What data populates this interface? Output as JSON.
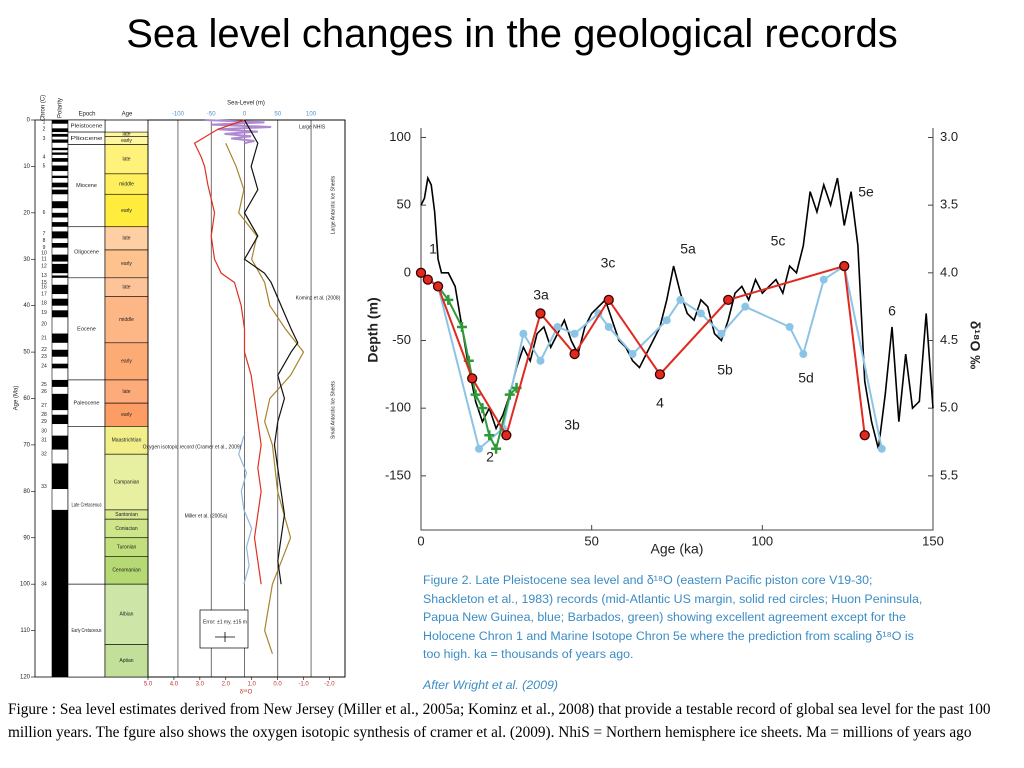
{
  "title": "Sea level changes in the geological records",
  "caption": "Figure : Sea level estimates derived from New Jersey (Miller et al., 2005a; Kominz et al., 2008) that provide a testable record of global sea level for the past 100 million years. The fgure also shows the oxygen isotopic synthesis of cramer et al. (2009). NhiS = Northern hemisphere ice sheets. Ma = millions of years ago",
  "chart_data": [
    {
      "type": "profile",
      "ylabel": "Age (Ma)",
      "xlabel": "Sea-Level (m)",
      "x2label": "δ¹⁸O",
      "columns": [
        "Chron (C)",
        "Polarity",
        "Epoch",
        "Age"
      ],
      "ylim": [
        0,
        120
      ],
      "yticks": [
        0,
        10,
        20,
        30,
        40,
        50,
        60,
        70,
        80,
        90,
        100,
        110,
        120
      ],
      "xlim": [
        -145,
        151
      ],
      "xticks": [
        -100,
        -50,
        0,
        50,
        100
      ],
      "x2lim": [
        5.0,
        -2.6
      ],
      "x2ticks": [
        {
          "value": 5,
          "label": "5.0"
        },
        {
          "value": 4,
          "label": "4.0"
        },
        {
          "value": 3,
          "label": "3.0"
        },
        {
          "value": 2,
          "label": "2.0"
        },
        {
          "value": 1,
          "label": "1.0"
        },
        {
          "value": 0,
          "label": "0.0"
        },
        {
          "value": -1,
          "label": "-1.0"
        },
        {
          "value": -2,
          "label": "-2.0"
        }
      ],
      "grid": true,
      "epochs": [
        {
          "name": "Pleistocene",
          "start": 0,
          "end": 2.6
        },
        {
          "name": "Pliocene",
          "start": 2.6,
          "end": 5.3
        },
        {
          "name": "Miocene",
          "start": 5.3,
          "end": 23
        },
        {
          "name": "Oligocene",
          "start": 23,
          "end": 34
        },
        {
          "name": "Eocene",
          "start": 34,
          "end": 56
        },
        {
          "name": "Paleocene",
          "start": 56,
          "end": 66
        },
        {
          "name": "Late Cretaceous",
          "start": 66,
          "end": 100
        },
        {
          "name": "Early Cretaceous",
          "start": 100,
          "end": 120
        }
      ],
      "stages": [
        {
          "name": "late",
          "start": 2.6,
          "end": 3.6,
          "color": "#fff6a0"
        },
        {
          "name": "early",
          "start": 3.6,
          "end": 5.3,
          "color": "#fff6a0"
        },
        {
          "name": "late",
          "start": 5.3,
          "end": 11.6,
          "color": "#fff27a"
        },
        {
          "name": "middle",
          "start": 11.6,
          "end": 16,
          "color": "#ffef5e"
        },
        {
          "name": "early",
          "start": 16,
          "end": 23,
          "color": "#ffec3c"
        },
        {
          "name": "late",
          "start": 23,
          "end": 28,
          "color": "#fdcfa2"
        },
        {
          "name": "early",
          "start": 28,
          "end": 34,
          "color": "#fdc28e"
        },
        {
          "name": "late",
          "start": 34,
          "end": 38,
          "color": "#fdc49a"
        },
        {
          "name": "middle",
          "start": 38,
          "end": 48,
          "color": "#fdb787"
        },
        {
          "name": "early",
          "start": 48,
          "end": 56,
          "color": "#fdab74"
        },
        {
          "name": "late",
          "start": 56,
          "end": 61,
          "color": "#fdab7a"
        },
        {
          "name": "early",
          "start": 61,
          "end": 66,
          "color": "#fd9d66"
        },
        {
          "name": "Maastrichtian",
          "start": 66,
          "end": 72,
          "color": "#f2ef8a"
        },
        {
          "name": "Campanian",
          "start": 72,
          "end": 84,
          "color": "#e7f0a0"
        },
        {
          "name": "Santonian",
          "start": 84,
          "end": 86,
          "color": "#d8e891"
        },
        {
          "name": "Coniacian",
          "start": 86,
          "end": 90,
          "color": "#cee58a"
        },
        {
          "name": "Turonian",
          "start": 90,
          "end": 94,
          "color": "#c1df7d"
        },
        {
          "name": "Cenomanian",
          "start": 94,
          "end": 100,
          "color": "#b5d973"
        },
        {
          "name": "Albian",
          "start": 100,
          "end": 113,
          "color": "#cde6a8"
        },
        {
          "name": "Aptian",
          "start": 113,
          "end": 120,
          "color": "#c2e09a"
        }
      ],
      "chrons": [
        {
          "label": "1",
          "age": 0.5
        },
        {
          "label": "2",
          "age": 2
        },
        {
          "label": "3",
          "age": 4
        },
        {
          "label": "4",
          "age": 8
        },
        {
          "label": "5",
          "age": 10
        },
        {
          "label": "6",
          "age": 20
        },
        {
          "label": "7",
          "age": 24.5
        },
        {
          "label": "8",
          "age": 26
        },
        {
          "label": "9",
          "age": 27.5
        },
        {
          "label": "10",
          "age": 28.7
        },
        {
          "label": "11",
          "age": 30
        },
        {
          "label": "12",
          "age": 31.5
        },
        {
          "label": "13",
          "age": 33.5
        },
        {
          "label": "15",
          "age": 35
        },
        {
          "label": "16",
          "age": 36
        },
        {
          "label": "17",
          "age": 37.5
        },
        {
          "label": "18",
          "age": 39.5
        },
        {
          "label": "19",
          "age": 41.5
        },
        {
          "label": "20",
          "age": 44
        },
        {
          "label": "21",
          "age": 47
        },
        {
          "label": "22",
          "age": 49.5
        },
        {
          "label": "23",
          "age": 51
        },
        {
          "label": "24",
          "age": 53
        },
        {
          "label": "25",
          "age": 57
        },
        {
          "label": "26",
          "age": 58.5
        },
        {
          "label": "27",
          "age": 61.5
        },
        {
          "label": "28",
          "age": 63.5
        },
        {
          "label": "29",
          "age": 65
        },
        {
          "label": "30",
          "age": 67
        },
        {
          "label": "31",
          "age": 69
        },
        {
          "label": "32",
          "age": 72
        },
        {
          "label": "33",
          "age": 79
        },
        {
          "label": "34",
          "age": 100
        }
      ],
      "polarity_normal": [
        [
          0,
          0.8
        ],
        [
          1.8,
          2.6
        ],
        [
          3.0,
          3.6
        ],
        [
          4.2,
          4.9
        ],
        [
          6.0,
          6.5
        ],
        [
          7.0,
          7.5
        ],
        [
          8.2,
          9.0
        ],
        [
          9.8,
          11.0
        ],
        [
          12.0,
          12.5
        ],
        [
          13.5,
          14.5
        ],
        [
          15.0,
          16.0
        ],
        [
          17.5,
          19.0
        ],
        [
          20.0,
          21.0
        ],
        [
          22.0,
          23.0
        ],
        [
          24.0,
          25.5
        ],
        [
          26.5,
          27.5
        ],
        [
          29.0,
          30.5
        ],
        [
          31.0,
          33.0
        ],
        [
          33.5,
          34.0
        ],
        [
          35.5,
          37.5
        ],
        [
          38.5,
          40.0
        ],
        [
          41.0,
          42.5
        ],
        [
          46.0,
          48.0
        ],
        [
          49.5,
          51.0
        ],
        [
          52.5,
          53.5
        ],
        [
          56,
          57.5
        ],
        [
          59,
          62.5
        ],
        [
          63.5,
          65.5
        ],
        [
          68,
          71
        ],
        [
          74,
          79.5
        ],
        [
          84,
          120
        ]
      ],
      "series": [
        {
          "color": "#b08ad0",
          "axis": "x",
          "ages": [
            0,
            0.5,
            1,
            1.5,
            2,
            2.5,
            3,
            3.5,
            4,
            4.5,
            5
          ],
          "values": [
            -60,
            30,
            -50,
            40,
            -40,
            20,
            -30,
            10,
            -20,
            15,
            0
          ]
        },
        {
          "color": "#a8842e",
          "axis": "x2",
          "ages": [
            5,
            10,
            15,
            20,
            25,
            30,
            35,
            40,
            45,
            50,
            55,
            60,
            65,
            70,
            80,
            90,
            100,
            110,
            115
          ],
          "values": [
            2.0,
            1.6,
            1.3,
            1.5,
            0.8,
            1.0,
            0.5,
            0.3,
            -0.3,
            -1.0,
            -0.5,
            0.3,
            0.5,
            0.2,
            0.0,
            -0.5,
            0.2,
            0.5,
            0.2
          ]
        },
        {
          "color": "#8fb8e0",
          "axis": "x2",
          "ages": [
            68,
            72,
            76,
            80,
            84,
            88,
            92,
            96,
            100
          ],
          "values": [
            1.3,
            1.5,
            1.2,
            1.4,
            1.3,
            1.0,
            1.2,
            1.1,
            1.3
          ]
        },
        {
          "color": "#e03020",
          "axis": "x",
          "ages": [
            0,
            2,
            5,
            8,
            10,
            14,
            17,
            20,
            25,
            30,
            33,
            35,
            40,
            45,
            50,
            55,
            60,
            65,
            70,
            75,
            80,
            85,
            90,
            95,
            100
          ],
          "values": [
            0,
            -40,
            -75,
            -65,
            -60,
            -55,
            -50,
            -45,
            -50,
            -45,
            -35,
            -15,
            -5,
            0,
            0,
            10,
            15,
            20,
            25,
            20,
            25,
            20,
            15,
            20,
            25
          ]
        },
        {
          "color": "#111111",
          "axis": "x",
          "ages": [
            0,
            5,
            10,
            15,
            20,
            25,
            30,
            33,
            35,
            40,
            45,
            48,
            50,
            55,
            60,
            65,
            70,
            75,
            80,
            85,
            90,
            95,
            100
          ],
          "values": [
            0,
            20,
            10,
            20,
            0,
            20,
            0,
            30,
            40,
            55,
            70,
            80,
            70,
            50,
            60,
            50,
            45,
            50,
            55,
            60,
            55,
            50,
            55
          ]
        }
      ],
      "annotations": [
        "Large NHIS",
        "Large Antarctic Ice Sheets",
        "Small Antarctic Ice Sheets",
        "Kominz et al. (2008)",
        "Oxygen isotopic record (Cramer et al., 2009)",
        "Miller et al. (2005a)",
        "Error: ±1 my, ±15 m"
      ]
    },
    {
      "type": "line",
      "xlabel": "Age (ka)",
      "ylabel": "Depth (m)",
      "y2label": "δ¹⁸O ‰",
      "xlim": [
        0,
        150
      ],
      "xticks": [
        0,
        50,
        100,
        150
      ],
      "ylim": [
        -190,
        107
      ],
      "yticks": [
        100,
        50,
        0,
        -50,
        -100,
        -150
      ],
      "y2lim": [
        5.9,
        2.93
      ],
      "y2ticks": [
        {
          "value": 3,
          "label": "3.0"
        },
        {
          "value": 3.5,
          "label": "3.5"
        },
        {
          "value": 4,
          "label": "4.0"
        },
        {
          "value": 4.5,
          "label": "4.5"
        },
        {
          "value": 5,
          "label": "5.0"
        },
        {
          "value": 5.5,
          "label": "5.5"
        }
      ],
      "series": [
        {
          "color": "#000000",
          "axis": "y2",
          "marker": "none",
          "x": [
            0,
            1,
            2,
            3,
            4,
            5,
            6,
            8,
            10,
            12,
            14,
            16,
            18,
            20,
            22,
            24,
            26,
            28,
            30,
            32,
            34,
            36,
            38,
            40,
            42,
            44,
            46,
            48,
            50,
            52,
            54,
            56,
            58,
            60,
            62,
            64,
            66,
            68,
            70,
            72,
            74,
            76,
            78,
            80,
            82,
            84,
            86,
            88,
            90,
            92,
            94,
            96,
            98,
            100,
            102,
            104,
            106,
            108,
            110,
            112,
            114,
            116,
            118,
            120,
            122,
            124,
            126,
            128,
            130,
            132,
            134,
            136,
            138,
            140,
            142,
            144,
            146,
            148,
            150
          ],
          "values": [
            3.5,
            3.45,
            3.3,
            3.35,
            3.55,
            3.9,
            4,
            4,
            4.1,
            4.4,
            4.7,
            4.95,
            5.1,
            5,
            5.15,
            5.05,
            4.9,
            4.7,
            4.55,
            4.65,
            4.45,
            4.4,
            4.55,
            4.45,
            4.35,
            4.5,
            4.6,
            4.4,
            4.3,
            4.25,
            4.2,
            4.35,
            4.5,
            4.55,
            4.65,
            4.7,
            4.6,
            4.5,
            4.4,
            4.2,
            3.95,
            4.15,
            4.3,
            4.35,
            4.2,
            4.25,
            4.45,
            4.5,
            4.35,
            4.15,
            4.1,
            4.2,
            4.05,
            4.15,
            4.1,
            4.05,
            4.15,
            3.95,
            4,
            3.8,
            3.4,
            3.55,
            3.35,
            3.5,
            3.3,
            3.65,
            3.4,
            3.8,
            4.8,
            5.1,
            5.3,
            4.9,
            4.4,
            5.1,
            4.6,
            5,
            4.95,
            4.3,
            5
          ]
        },
        {
          "color": "#8cc4e6",
          "axis": "y",
          "marker": "dot",
          "x": [
            0,
            5,
            17,
            24,
            30,
            35,
            40,
            45,
            52,
            55,
            62,
            72,
            76,
            82,
            88,
            95,
            108,
            112,
            118,
            124,
            135
          ],
          "values": [
            0,
            -10,
            -130,
            -115,
            -45,
            -65,
            -40,
            -45,
            -30,
            -40,
            -60,
            -35,
            -20,
            -30,
            -45,
            -25,
            -40,
            -60,
            -5,
            5,
            -130
          ]
        },
        {
          "color": "#2e9a3a",
          "axis": "y",
          "marker": "plus",
          "x": [
            5,
            8,
            12,
            14,
            16,
            18,
            20,
            22,
            26,
            28
          ],
          "values": [
            -10,
            -20,
            -40,
            -65,
            -90,
            -100,
            -120,
            -130,
            -90,
            -85
          ]
        },
        {
          "color": "#e02a20",
          "axis": "y",
          "marker": "circle",
          "x": [
            0,
            2,
            5,
            15,
            25,
            35,
            45,
            55,
            70,
            90,
            124,
            130
          ],
          "values": [
            0,
            -5,
            -10,
            -78,
            -120,
            -30,
            -60,
            -20,
            -75,
            -20,
            5,
            -120
          ]
        }
      ],
      "annotations": [
        "1",
        "2",
        "3a",
        "3b",
        "3c",
        "4",
        "5a",
        "5b",
        "5c",
        "5d",
        "5e",
        "6"
      ],
      "caption": "Figure 2. Late Pleistocene sea level and δ¹⁸O (eastern Pacific piston core V19-30; Shackleton et al., 1983) records (mid-Atlantic US margin, solid red circles; Huon Peninsula, Papua New Guinea, blue; Barbados, green) showing excellent agreement except for the Holocene Chron 1 and Marine Isotope Chron 5e where the prediction from scaling δ¹⁸O is too high. ka = thousands of years ago.",
      "credit": "After Wright et al. (2009)"
    }
  ]
}
